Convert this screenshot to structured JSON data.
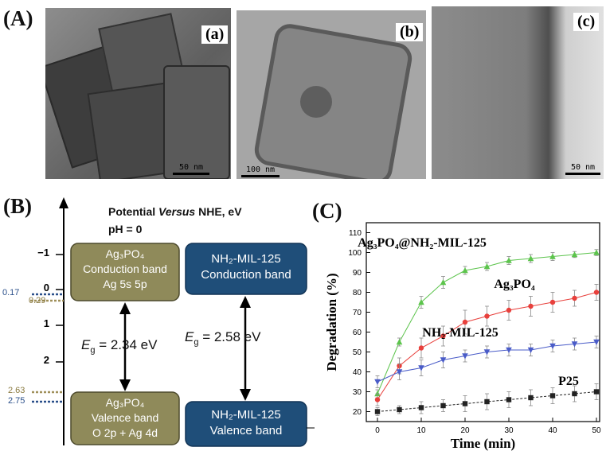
{
  "panel_A": {
    "label": "(A)",
    "images": [
      {
        "label": "(a)",
        "scale": "50 nm"
      },
      {
        "label": "(b)",
        "scale": "100 nm"
      },
      {
        "label": "(c)",
        "scale": "50 nm"
      }
    ]
  },
  "panel_B": {
    "label": "(B)",
    "axis_title_pre": "Potential ",
    "axis_title_italic": "Versus",
    "axis_title_post": " NHE, eV",
    "ph": "pH = 0",
    "ticks": [
      "−1",
      "0",
      "1",
      "2"
    ],
    "edge_labels": [
      "0.17",
      "0.29",
      "2.63",
      "2.75"
    ],
    "ag3po4_cb": {
      "name": "Ag₃PO₄",
      "line2": "Conduction band",
      "line3": "Ag 5s 5p"
    },
    "ag3po4_vb": {
      "name": "Ag₃PO₄",
      "line2": "Valence band",
      "line3": "O 2p + Ag 4d"
    },
    "mil_cb": {
      "name": "NH₂-MIL-125",
      "line2": "Conduction band"
    },
    "mil_vb": {
      "name": "NH₂-MIL-125",
      "line2": "Valence band"
    },
    "eg_ag3po4": "E",
    "eg_ag3po4_sub": "g",
    "eg_ag3po4_val": " = 2.34 eV",
    "eg_mil": "E",
    "eg_mil_sub": "g",
    "eg_mil_val": " = 2.58 eV",
    "colors": {
      "olive": "#8f8a5a",
      "navy": "#1f4e79",
      "tan_dots": "#a0905a",
      "blue_dots": "#2a4f8a"
    }
  },
  "chart_data": {
    "type": "line",
    "panel_label": "(C)",
    "xlabel": "Time (min)",
    "ylabel": "Degradation (%)",
    "xlim": [
      0,
      50
    ],
    "ylim": [
      15,
      115
    ],
    "xticks": [
      0,
      10,
      20,
      30,
      40,
      50
    ],
    "yticks": [
      20,
      30,
      40,
      50,
      60,
      70,
      80,
      90,
      100,
      110
    ],
    "x": [
      0,
      5,
      10,
      15,
      20,
      25,
      30,
      35,
      40,
      45,
      50
    ],
    "series": [
      {
        "name": "Ag₃PO₄@NH₂-MIL-125",
        "color": "#5cc44c",
        "marker": "triangle-up",
        "values": [
          29,
          55,
          75,
          85,
          91,
          93,
          96,
          97,
          98,
          99,
          100
        ],
        "err": [
          2,
          2,
          3,
          3,
          2,
          2,
          2,
          2,
          2,
          1.5,
          1.5
        ]
      },
      {
        "name": "Ag₃PO₄",
        "color": "#e8403c",
        "marker": "circle",
        "values": [
          26,
          43,
          52,
          58,
          65,
          68,
          71,
          73,
          75,
          77,
          80
        ],
        "err": [
          3,
          4,
          5,
          5,
          6,
          5,
          5,
          5,
          5,
          4,
          4
        ]
      },
      {
        "name": "NH₂-MIL-125",
        "color": "#4a5cc8",
        "marker": "triangle-down",
        "values": [
          35,
          40,
          42,
          46,
          48,
          50,
          51,
          51,
          53,
          54,
          55
        ],
        "err": [
          3,
          4,
          4,
          4,
          3,
          3,
          3,
          3,
          3,
          3,
          3
        ]
      },
      {
        "name": "P25",
        "color": "#222222",
        "marker": "square",
        "values": [
          20,
          21,
          22,
          23,
          24,
          25,
          26,
          27,
          28,
          29,
          30
        ],
        "err": [
          2,
          2,
          3,
          3,
          4,
          4,
          4,
          4,
          4,
          4,
          4
        ]
      }
    ]
  }
}
